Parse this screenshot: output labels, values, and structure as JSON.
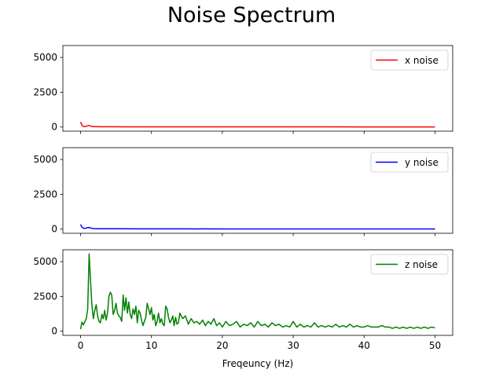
{
  "figure": {
    "title": "Noise Spectrum"
  },
  "chart_data": {
    "type": "line",
    "title": "Noise Spectrum",
    "xlabel": "Freqeuncy (Hz)",
    "xlim": [
      -2.5,
      52.5
    ],
    "ylim": [
      -300,
      5850
    ],
    "x_ticks": [
      0,
      10,
      20,
      30,
      40,
      50
    ],
    "y_ticks": [
      0,
      2500,
      5000
    ],
    "sharex": true,
    "legend_placement": "top-right",
    "panels": [
      {
        "name": "x noise",
        "color": "#ff0000",
        "x": [
          0,
          0.2,
          0.4,
          0.6,
          0.8,
          1.0,
          1.2,
          1.4,
          1.6,
          1.8,
          2.0,
          2.5,
          3,
          4,
          5,
          6,
          8,
          10,
          15,
          20,
          25,
          30,
          35,
          40,
          45,
          50
        ],
        "values": [
          360,
          120,
          40,
          30,
          50,
          90,
          110,
          70,
          40,
          30,
          25,
          20,
          18,
          15,
          14,
          12,
          11,
          10,
          9,
          9,
          8,
          8,
          8,
          7,
          7,
          7
        ]
      },
      {
        "name": "y noise",
        "color": "#0000ff",
        "x": [
          0,
          0.2,
          0.4,
          0.6,
          0.8,
          1.0,
          1.2,
          1.4,
          1.6,
          1.8,
          2.0,
          2.5,
          3,
          4,
          5,
          6,
          8,
          10,
          15,
          20,
          25,
          30,
          35,
          40,
          45,
          50
        ],
        "values": [
          330,
          140,
          60,
          50,
          70,
          110,
          120,
          80,
          50,
          40,
          35,
          30,
          28,
          25,
          22,
          20,
          18,
          16,
          14,
          13,
          12,
          11,
          11,
          10,
          10,
          10
        ]
      },
      {
        "name": "z noise",
        "color": "#008000",
        "x": [
          0,
          0.2,
          0.4,
          0.6,
          0.8,
          1.0,
          1.2,
          1.4,
          1.6,
          1.8,
          2.0,
          2.2,
          2.4,
          2.6,
          2.8,
          3.0,
          3.2,
          3.4,
          3.6,
          3.8,
          4.0,
          4.2,
          4.4,
          4.6,
          4.8,
          5.0,
          5.2,
          5.4,
          5.6,
          5.8,
          6.0,
          6.2,
          6.4,
          6.6,
          6.8,
          7.0,
          7.2,
          7.4,
          7.6,
          7.8,
          8.0,
          8.2,
          8.4,
          8.6,
          8.8,
          9.0,
          9.2,
          9.4,
          9.6,
          9.8,
          10.0,
          10.2,
          10.4,
          10.6,
          10.8,
          11.0,
          11.2,
          11.4,
          11.6,
          11.8,
          12.0,
          12.2,
          12.4,
          12.6,
          12.8,
          13.0,
          13.2,
          13.4,
          13.6,
          13.8,
          14.0,
          14.4,
          14.8,
          15.2,
          15.6,
          16.0,
          16.4,
          16.8,
          17.2,
          17.6,
          18.0,
          18.4,
          18.8,
          19.2,
          19.6,
          20.0,
          20.5,
          21.0,
          21.5,
          22.0,
          22.5,
          23.0,
          23.5,
          24.0,
          24.5,
          25.0,
          25.5,
          26.0,
          26.5,
          27.0,
          27.5,
          28.0,
          28.5,
          29.0,
          29.5,
          30.0,
          30.5,
          31.0,
          31.5,
          32.0,
          32.5,
          33.0,
          33.5,
          34.0,
          34.5,
          35.0,
          35.5,
          36.0,
          36.5,
          37.0,
          37.5,
          38.0,
          38.5,
          39.0,
          39.5,
          40.0,
          40.5,
          41.0,
          41.5,
          42.0,
          42.5,
          43.0,
          43.5,
          44.0,
          44.5,
          45.0,
          45.5,
          46.0,
          46.5,
          47.0,
          47.5,
          48.0,
          48.5,
          49.0,
          49.5,
          50.0
        ],
        "values": [
          150,
          650,
          450,
          700,
          900,
          1600,
          5550,
          3600,
          1800,
          900,
          1500,
          1900,
          1100,
          700,
          600,
          1200,
          900,
          1500,
          800,
          1300,
          2500,
          2800,
          2600,
          1200,
          1500,
          2000,
          1300,
          1100,
          1000,
          700,
          2600,
          1500,
          2400,
          1300,
          2100,
          1200,
          900,
          1600,
          1200,
          1800,
          600,
          1500,
          1300,
          800,
          400,
          700,
          1000,
          2000,
          1600,
          1200,
          1700,
          800,
          1200,
          400,
          700,
          1300,
          600,
          900,
          500,
          400,
          1800,
          1600,
          1000,
          600,
          800,
          1100,
          400,
          1000,
          500,
          600,
          1300,
          900,
          1100,
          500,
          900,
          600,
          700,
          500,
          800,
          400,
          700,
          500,
          900,
          400,
          600,
          300,
          700,
          400,
          500,
          700,
          300,
          500,
          400,
          600,
          300,
          700,
          400,
          500,
          300,
          600,
          400,
          500,
          300,
          400,
          300,
          700,
          300,
          500,
          300,
          400,
          300,
          600,
          300,
          400,
          300,
          400,
          300,
          500,
          300,
          400,
          300,
          500,
          300,
          400,
          300,
          300,
          400,
          300,
          300,
          300,
          400,
          300,
          300,
          200,
          300,
          200,
          300,
          200,
          300,
          200,
          300,
          200,
          300,
          200,
          300,
          250
        ]
      }
    ]
  }
}
